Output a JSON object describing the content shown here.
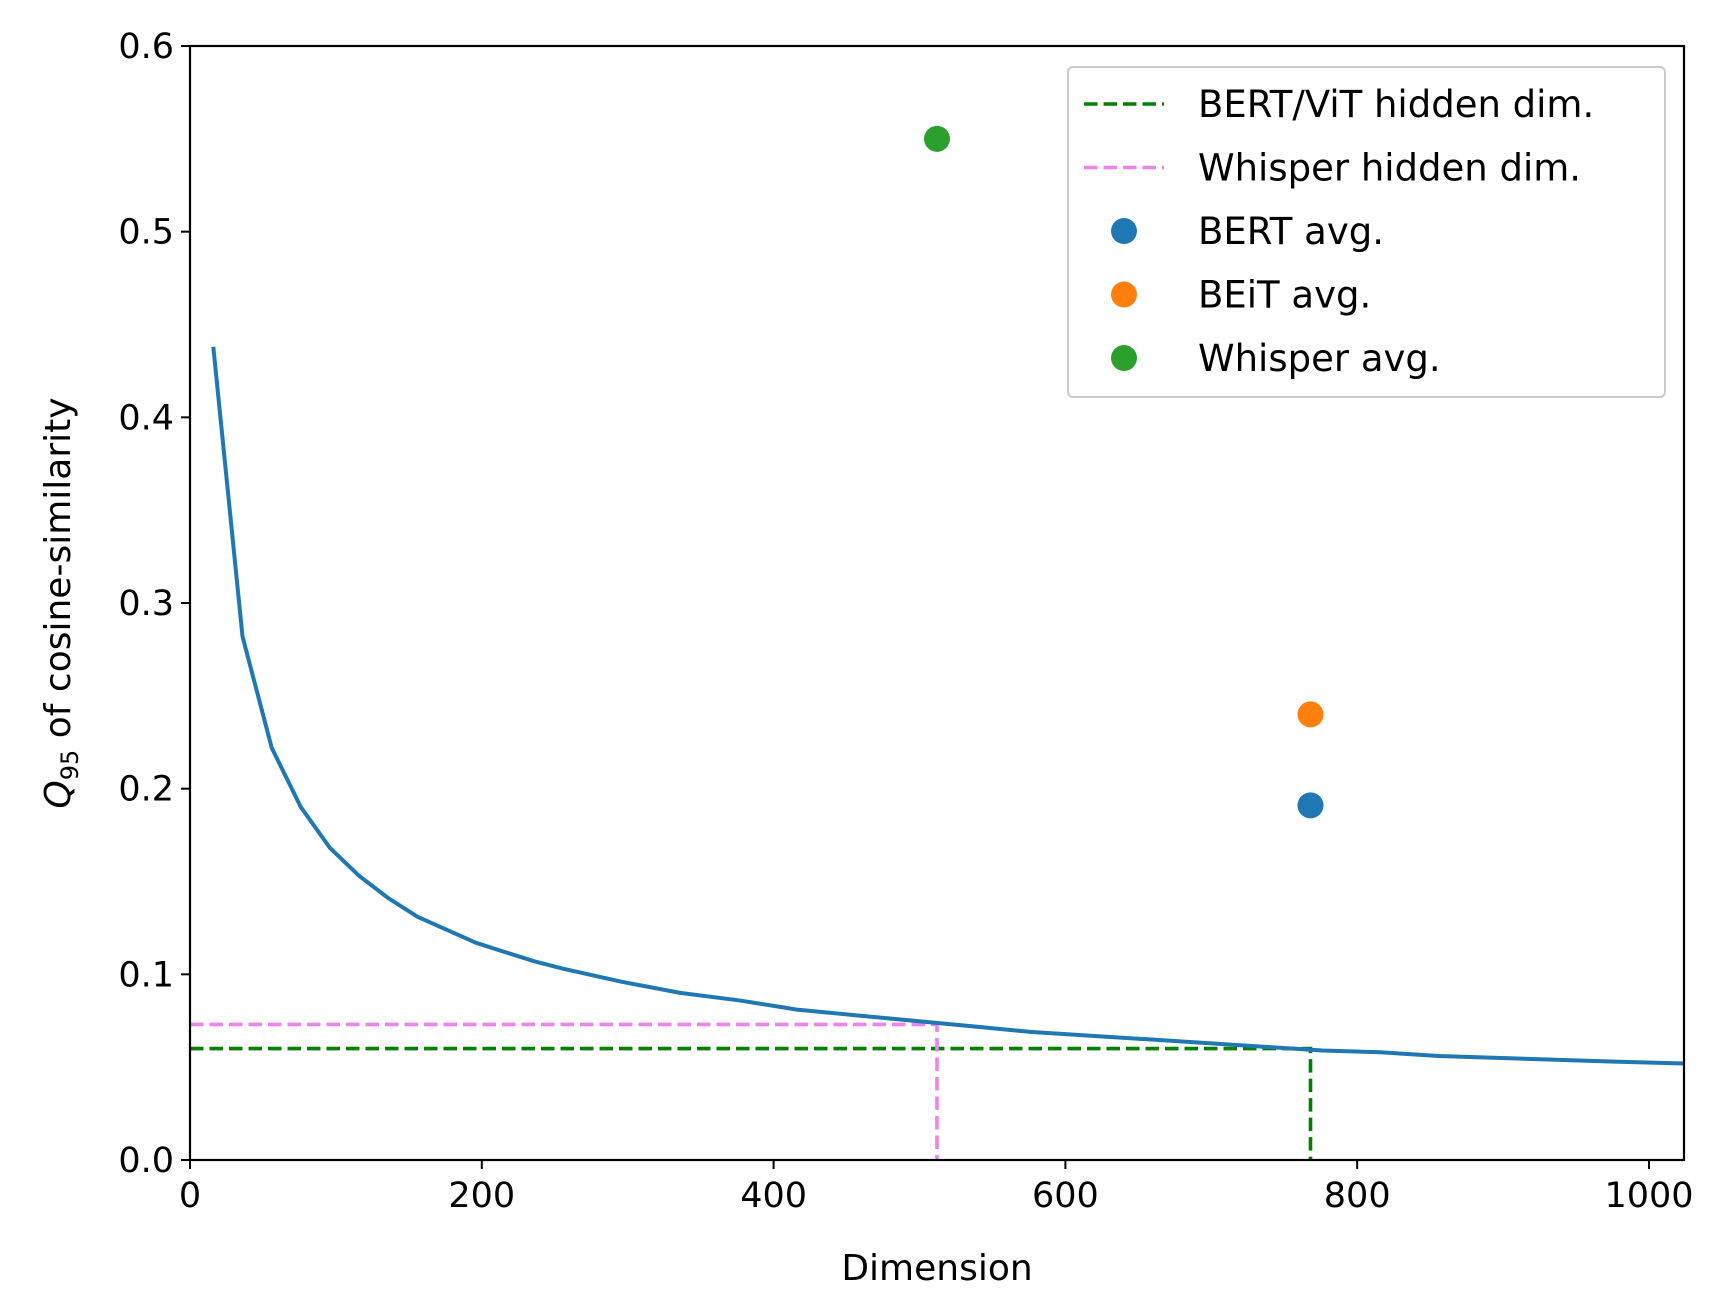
{
  "chart_data": {
    "type": "line",
    "xlabel": "Dimension",
    "ylabel": {
      "q": "Q",
      "sub": "95",
      "rest": " of cosine-similarity"
    },
    "xlim": [
      0,
      1024
    ],
    "ylim": [
      0,
      0.6
    ],
    "xticks": [
      0,
      200,
      400,
      600,
      800,
      1000
    ],
    "yticks": [
      0.0,
      0.1,
      0.2,
      0.3,
      0.4,
      0.5,
      0.6
    ],
    "xtick_labels": [
      "0",
      "200",
      "400",
      "600",
      "800",
      "1000"
    ],
    "ytick_labels": [
      "0.0",
      "0.1",
      "0.2",
      "0.3",
      "0.4",
      "0.5",
      "0.6"
    ],
    "grid": false,
    "legend_position": "top-right",
    "series": [
      {
        "kind": "line",
        "color": "#1f77b4",
        "x": [
          16,
          36,
          56,
          76,
          96,
          116,
          136,
          156,
          176,
          196,
          216,
          236,
          256,
          296,
          336,
          376,
          416,
          456,
          496,
          536,
          576,
          616,
          656,
          696,
          736,
          776,
          816,
          856,
          896,
          936,
          976,
          1024
        ],
        "y": [
          0.438,
          0.282,
          0.222,
          0.19,
          0.168,
          0.153,
          0.141,
          0.131,
          0.124,
          0.117,
          0.112,
          0.107,
          0.103,
          0.096,
          0.09,
          0.086,
          0.081,
          0.078,
          0.075,
          0.072,
          0.069,
          0.067,
          0.065,
          0.063,
          0.061,
          0.059,
          0.058,
          0.056,
          0.055,
          0.054,
          0.053,
          0.052
        ]
      },
      {
        "kind": "dashed",
        "name": "BERT/ViT hidden dim.",
        "color": "#008000",
        "x": 768,
        "y": 0.06
      },
      {
        "kind": "dashed",
        "name": "Whisper hidden dim.",
        "color": "#ee82ee",
        "x": 512,
        "y": 0.073
      },
      {
        "kind": "point",
        "name": "BERT avg.",
        "color": "#1f77b4",
        "x": 768,
        "y": 0.191
      },
      {
        "kind": "point",
        "name": "BEiT avg.",
        "color": "#ff7f0e",
        "x": 768,
        "y": 0.24
      },
      {
        "kind": "point",
        "name": "Whisper avg.",
        "color": "#2ca02c",
        "x": 512,
        "y": 0.55
      }
    ]
  }
}
